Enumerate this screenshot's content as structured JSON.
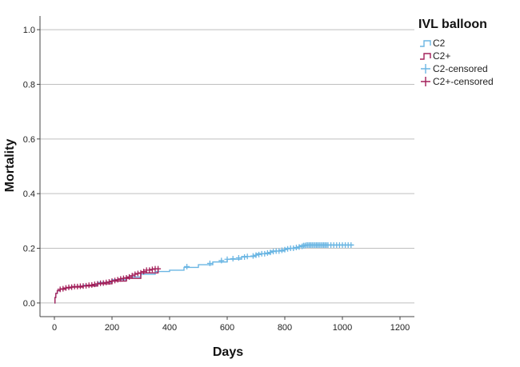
{
  "chart_data": {
    "type": "line",
    "title": "",
    "xlabel": "Days",
    "ylabel": "Mortality",
    "xlim": [
      -50,
      1250
    ],
    "ylim": [
      -0.05,
      1.05
    ],
    "xticks": [
      0,
      200,
      400,
      600,
      800,
      1000,
      1200
    ],
    "xtick_labels": [
      "0",
      "200",
      "400",
      "600",
      "800",
      "1000",
      "1200"
    ],
    "yticks": [
      0.0,
      0.2,
      0.4,
      0.6,
      0.8,
      1.0
    ],
    "ytick_labels": [
      "0.0",
      "0.2",
      "0.4",
      "0.6",
      "0.8",
      "1.0"
    ],
    "grid": "horizontal",
    "legend": {
      "title": "IVL balloon",
      "placement": "right",
      "items": [
        {
          "label": "C2",
          "kind": "step",
          "color": "#6bb6e3"
        },
        {
          "label": "C2+",
          "kind": "step",
          "color": "#a3205a"
        },
        {
          "label": "C2-censored",
          "kind": "cross",
          "color": "#6bb6e3"
        },
        {
          "label": "C2+-censored",
          "kind": "cross",
          "color": "#a3205a"
        }
      ]
    },
    "series": [
      {
        "name": "C2",
        "color": "#6bb6e3",
        "x": [
          0,
          2,
          5,
          10,
          20,
          40,
          60,
          100,
          150,
          200,
          250,
          300,
          350,
          400,
          450,
          500,
          550,
          600,
          650,
          700,
          750,
          800,
          850,
          870,
          900,
          1000,
          1040
        ],
        "y": [
          0.0,
          0.02,
          0.035,
          0.045,
          0.05,
          0.055,
          0.06,
          0.065,
          0.075,
          0.085,
          0.095,
          0.105,
          0.115,
          0.12,
          0.13,
          0.14,
          0.15,
          0.16,
          0.17,
          0.18,
          0.19,
          0.2,
          0.21,
          0.212,
          0.212,
          0.212,
          0.212
        ],
        "censored_x": [
          460,
          540,
          580,
          600,
          620,
          640,
          660,
          670,
          690,
          700,
          710,
          720,
          730,
          740,
          750,
          760,
          770,
          780,
          790,
          800,
          810,
          820,
          830,
          840,
          850,
          860,
          865,
          870,
          875,
          880,
          885,
          890,
          895,
          900,
          905,
          910,
          915,
          920,
          925,
          930,
          935,
          940,
          945,
          950,
          960,
          970,
          980,
          990,
          1000,
          1010,
          1020,
          1030
        ],
        "censored_y": [
          0.133,
          0.145,
          0.155,
          0.16,
          0.162,
          0.165,
          0.168,
          0.17,
          0.172,
          0.175,
          0.177,
          0.18,
          0.18,
          0.183,
          0.185,
          0.188,
          0.19,
          0.19,
          0.193,
          0.195,
          0.198,
          0.2,
          0.2,
          0.203,
          0.205,
          0.207,
          0.21,
          0.21,
          0.212,
          0.212,
          0.212,
          0.212,
          0.212,
          0.212,
          0.212,
          0.212,
          0.212,
          0.212,
          0.212,
          0.212,
          0.212,
          0.212,
          0.212,
          0.212,
          0.212,
          0.212,
          0.212,
          0.212,
          0.212,
          0.212,
          0.212,
          0.212
        ]
      },
      {
        "name": "C2+",
        "color": "#a3205a",
        "x": [
          0,
          2,
          5,
          10,
          20,
          40,
          60,
          100,
          150,
          200,
          250,
          300,
          360
        ],
        "y": [
          0.0,
          0.02,
          0.035,
          0.045,
          0.05,
          0.055,
          0.058,
          0.062,
          0.07,
          0.08,
          0.09,
          0.11,
          0.125
        ],
        "censored_x": [
          20,
          30,
          40,
          50,
          60,
          70,
          80,
          90,
          100,
          110,
          120,
          130,
          140,
          150,
          160,
          170,
          180,
          190,
          200,
          210,
          220,
          230,
          240,
          250,
          260,
          270,
          280,
          290,
          300,
          310,
          320,
          330,
          340,
          350,
          360
        ],
        "censored_y": [
          0.05,
          0.052,
          0.055,
          0.057,
          0.058,
          0.06,
          0.06,
          0.061,
          0.062,
          0.063,
          0.065,
          0.066,
          0.068,
          0.07,
          0.072,
          0.073,
          0.075,
          0.077,
          0.08,
          0.082,
          0.085,
          0.088,
          0.09,
          0.092,
          0.095,
          0.1,
          0.105,
          0.108,
          0.11,
          0.115,
          0.12,
          0.12,
          0.123,
          0.125,
          0.125
        ]
      }
    ]
  }
}
